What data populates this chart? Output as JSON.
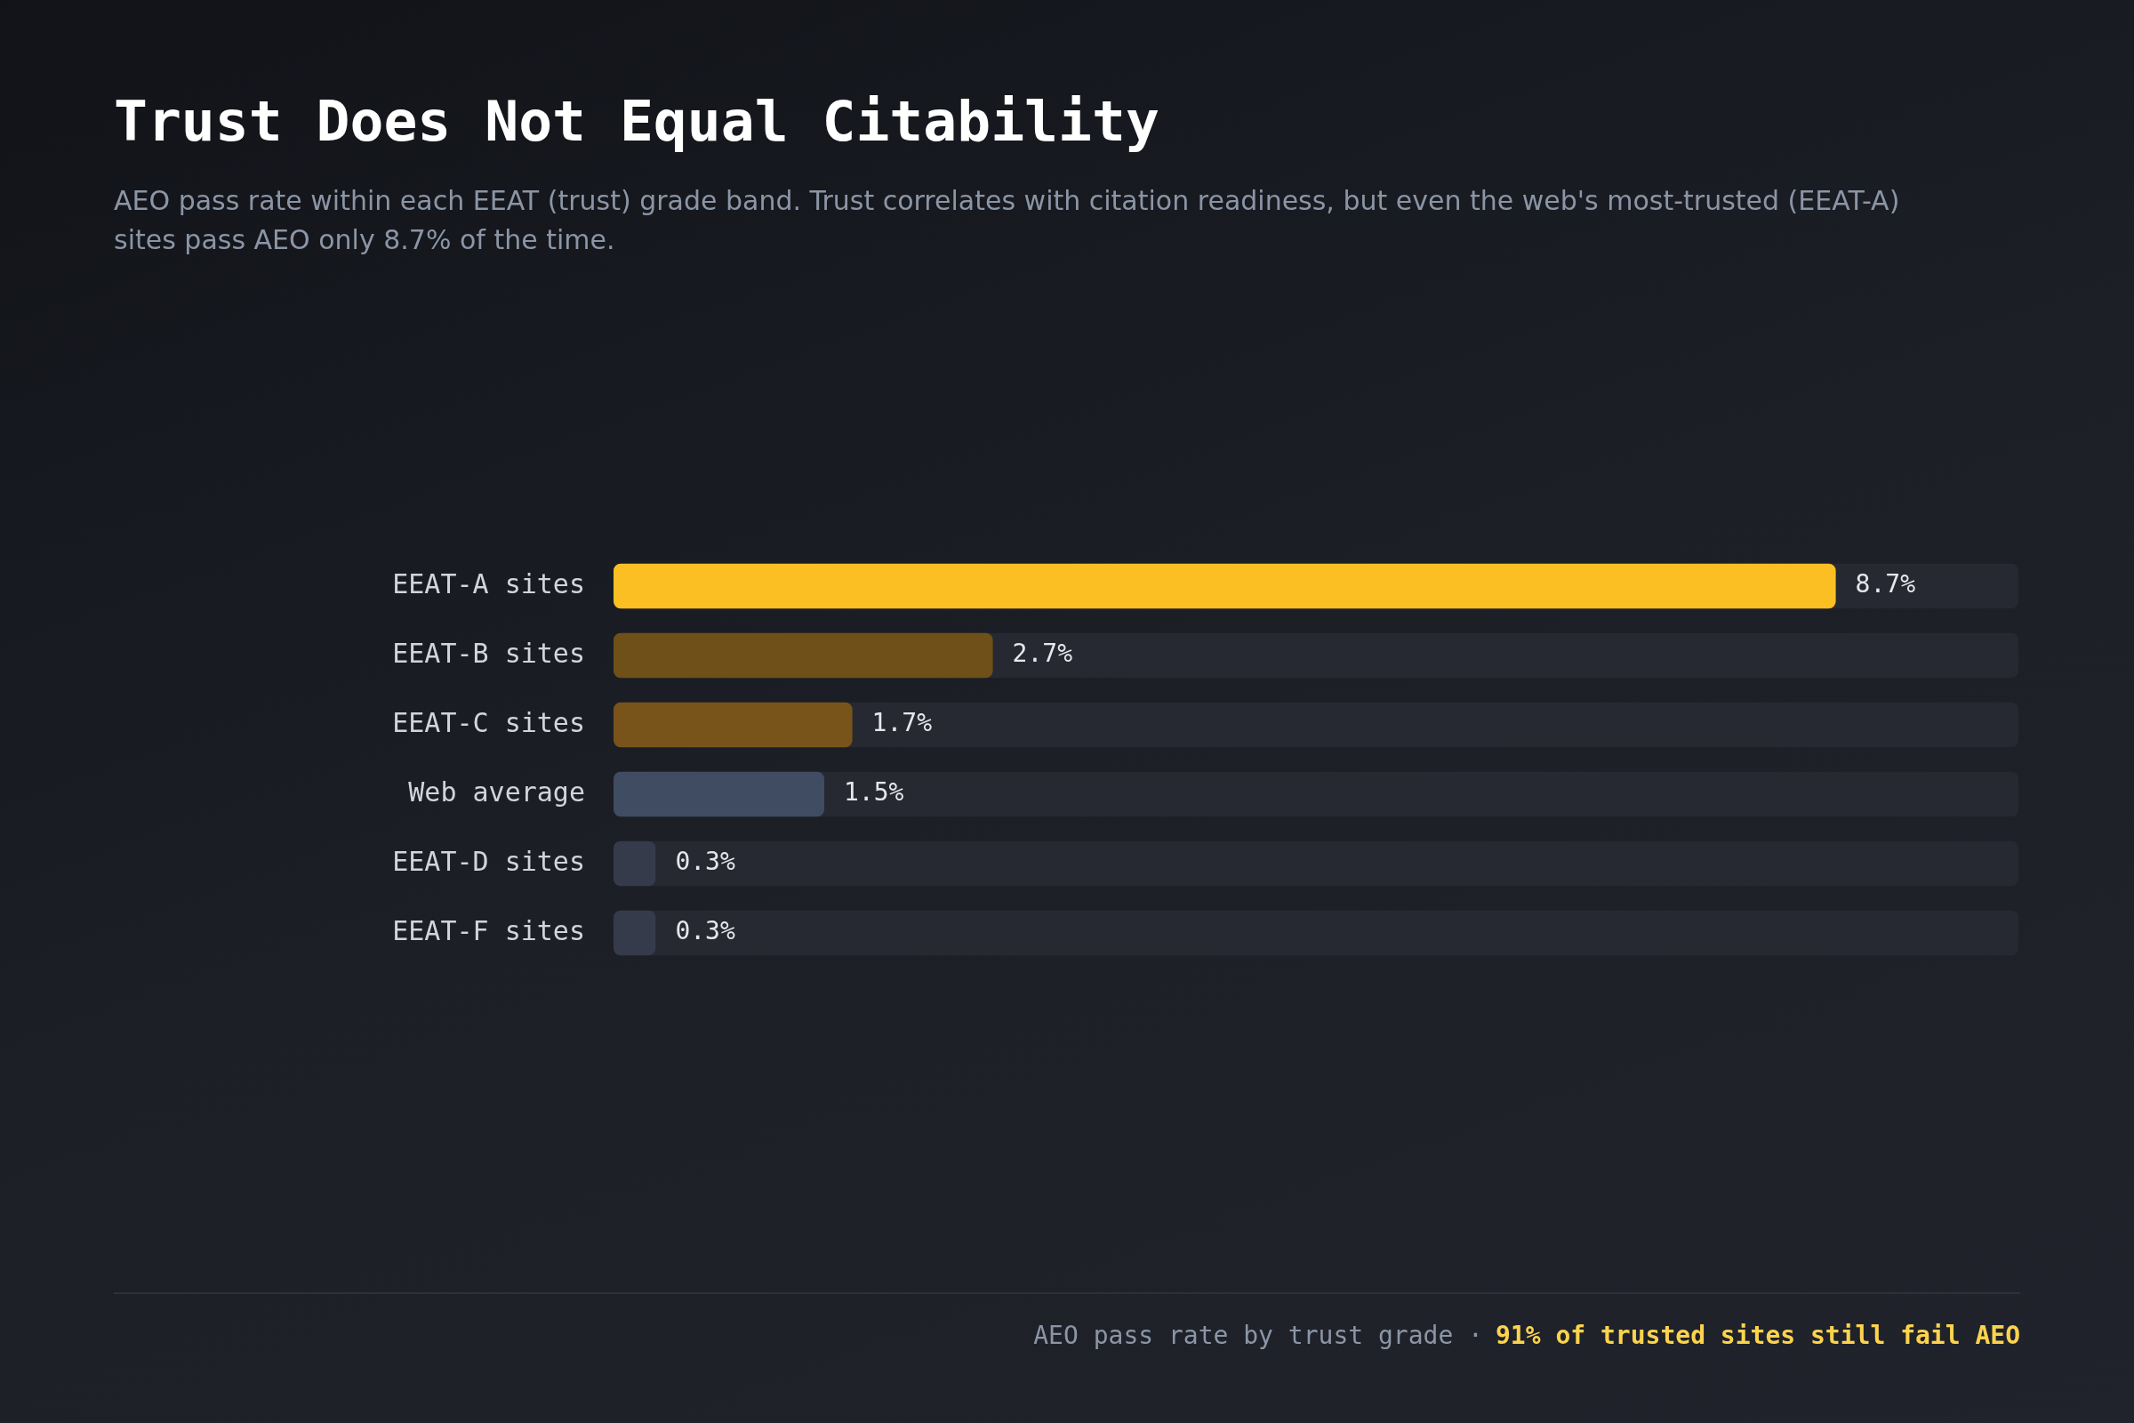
{
  "chart_data": {
    "type": "bar",
    "orientation": "horizontal",
    "title": "Trust Does Not Equal Citability",
    "subtitle": "AEO pass rate within each EEAT (trust) grade band. Trust correlates with citation readiness, but even the web's most-trusted (EEAT-A) sites pass AEO only 8.7% of the time.",
    "categories": [
      "EEAT-A sites",
      "EEAT-B sites",
      "EEAT-C sites",
      "Web average",
      "EEAT-D sites",
      "EEAT-F sites"
    ],
    "values": [
      8.7,
      2.7,
      1.7,
      1.5,
      0.3,
      0.3
    ],
    "colors": [
      "#fbbf24",
      "#6f5019",
      "#78541a",
      "#3f4c61",
      "#353b4a",
      "#353b4a"
    ],
    "value_labels": [
      "8.7%",
      "2.7%",
      "1.7%",
      "1.5%",
      "0.3%",
      "0.3%"
    ],
    "xlim": [
      0,
      10
    ],
    "legend": false,
    "tick_labels": "y",
    "annotations": [
      "AEO pass rate by trust grade ·",
      "91% of trusted sites still fail AEO"
    ]
  }
}
